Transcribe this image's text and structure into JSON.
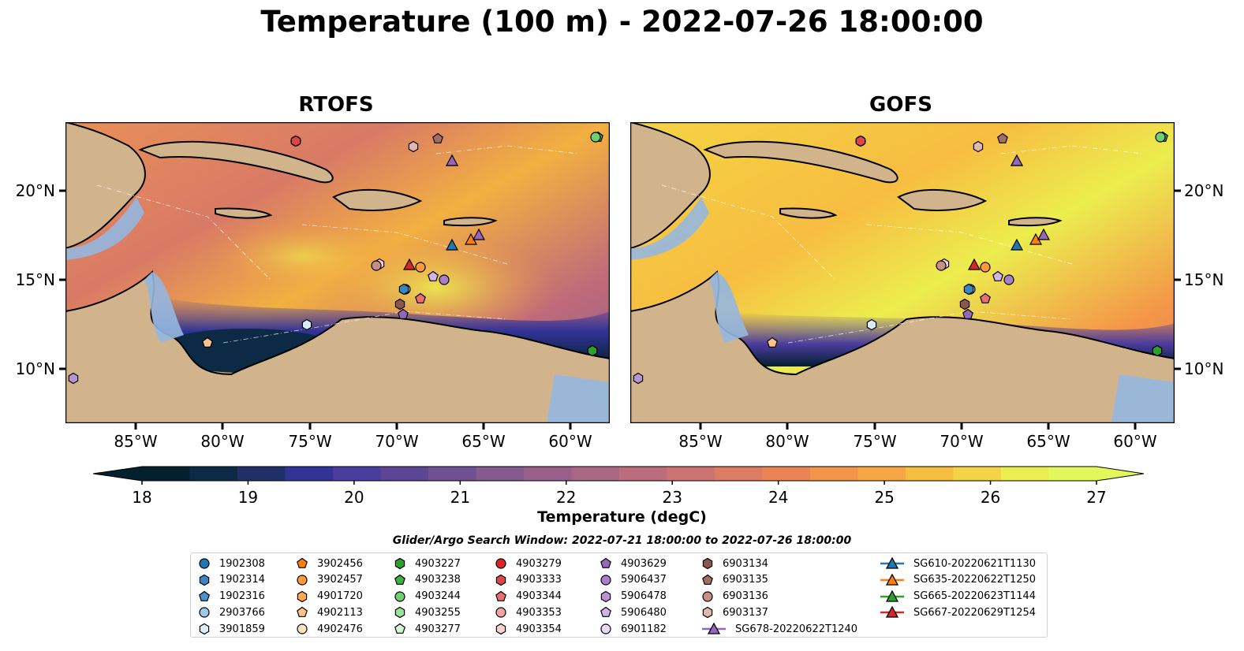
{
  "title": "Temperature (100 m) - 2022-07-26 18:00:00",
  "panels": [
    {
      "title": "RTOFS",
      "gradient": "rtofs"
    },
    {
      "title": "GOFS",
      "gradient": "gofs"
    }
  ],
  "axes": {
    "lon_ticks": [
      "85°W",
      "80°W",
      "75°W",
      "70°W",
      "65°W",
      "60°W"
    ],
    "lat_ticks": [
      "20°N",
      "15°N",
      "10°N"
    ]
  },
  "colorbar": {
    "label": "Temperature (degC)",
    "ticks": [
      "18",
      "19",
      "20",
      "21",
      "22",
      "23",
      "24",
      "25",
      "26",
      "27"
    ],
    "range": [
      18,
      27
    ],
    "colors": [
      "#03202f",
      "#0c2a45",
      "#1f2f6a",
      "#323396",
      "#4a3b9e",
      "#5d4596",
      "#704f93",
      "#845a8f",
      "#985f8a",
      "#aa6785",
      "#bc6c7c",
      "#cd7372",
      "#de7c63",
      "#ea8553",
      "#f39548",
      "#f6a743",
      "#f7bd41",
      "#f4d444",
      "#eced4e",
      "#e2f75a"
    ]
  },
  "search_window": "Glider/Argo Search Window: 2022-07-21 18:00:00 to 2022-07-26 18:00:00",
  "legend": [
    {
      "label": "1902308",
      "shape": "circle",
      "color": "#1f77b4"
    },
    {
      "label": "1902314",
      "shape": "hexagon",
      "color": "#3a87c0"
    },
    {
      "label": "1902316",
      "shape": "pentagon",
      "color": "#4a93cc"
    },
    {
      "label": "2903766",
      "shape": "circle",
      "color": "#9ec9e8"
    },
    {
      "label": "3901859",
      "shape": "hexagon",
      "color": "#dcecf7"
    },
    {
      "label": "3902456",
      "shape": "pentagon",
      "color": "#ff7f0e"
    },
    {
      "label": "3902457",
      "shape": "circle",
      "color": "#ff9a3c"
    },
    {
      "label": "4901720",
      "shape": "hexagon",
      "color": "#ffa955"
    },
    {
      "label": "4902113",
      "shape": "pentagon",
      "color": "#ffc28a"
    },
    {
      "label": "4902476",
      "shape": "circle",
      "color": "#ffe1c2"
    },
    {
      "label": "4903227",
      "shape": "hexagon",
      "color": "#2ca02c"
    },
    {
      "label": "4903238",
      "shape": "pentagon",
      "color": "#3cb13c"
    },
    {
      "label": "4903244",
      "shape": "circle",
      "color": "#6fd06f"
    },
    {
      "label": "4903255",
      "shape": "hexagon",
      "color": "#9de09d"
    },
    {
      "label": "4903277",
      "shape": "pentagon",
      "color": "#d4f5d4"
    },
    {
      "label": "4903279",
      "shape": "circle",
      "color": "#d62728"
    },
    {
      "label": "4903333",
      "shape": "hexagon",
      "color": "#e04546"
    },
    {
      "label": "4903344",
      "shape": "pentagon",
      "color": "#ea6f6f"
    },
    {
      "label": "4903353",
      "shape": "circle",
      "color": "#f4a3a3"
    },
    {
      "label": "4903354",
      "shape": "hexagon",
      "color": "#fad1d1"
    },
    {
      "label": "4903629",
      "shape": "pentagon",
      "color": "#9467bd"
    },
    {
      "label": "5906437",
      "shape": "circle",
      "color": "#a77fcb"
    },
    {
      "label": "5906478",
      "shape": "hexagon",
      "color": "#b894d6"
    },
    {
      "label": "5906480",
      "shape": "pentagon",
      "color": "#d0b6e6"
    },
    {
      "label": "6901182",
      "shape": "circle",
      "color": "#ead9f6"
    },
    {
      "label": "6903134",
      "shape": "hexagon",
      "color": "#8c564b"
    },
    {
      "label": "6903135",
      "shape": "pentagon",
      "color": "#a46d62"
    },
    {
      "label": "6903136",
      "shape": "circle",
      "color": "#c48f84"
    },
    {
      "label": "6903137",
      "shape": "hexagon",
      "color": "#e2b7ad"
    },
    {
      "label": "SG610-20220621T1130",
      "shape": "triangle-line",
      "color": "#1f77b4"
    },
    {
      "label": "SG635-20220622T1250",
      "shape": "triangle-line",
      "color": "#ff7f0e"
    },
    {
      "label": "SG665-20220623T1144",
      "shape": "triangle-line",
      "color": "#2ca02c"
    },
    {
      "label": "SG667-20220629T1254",
      "shape": "triangle-line",
      "color": "#d62728"
    },
    {
      "label": "SG678-20220622T1240",
      "shape": "triangle-line",
      "color": "#9467bd"
    }
  ]
}
